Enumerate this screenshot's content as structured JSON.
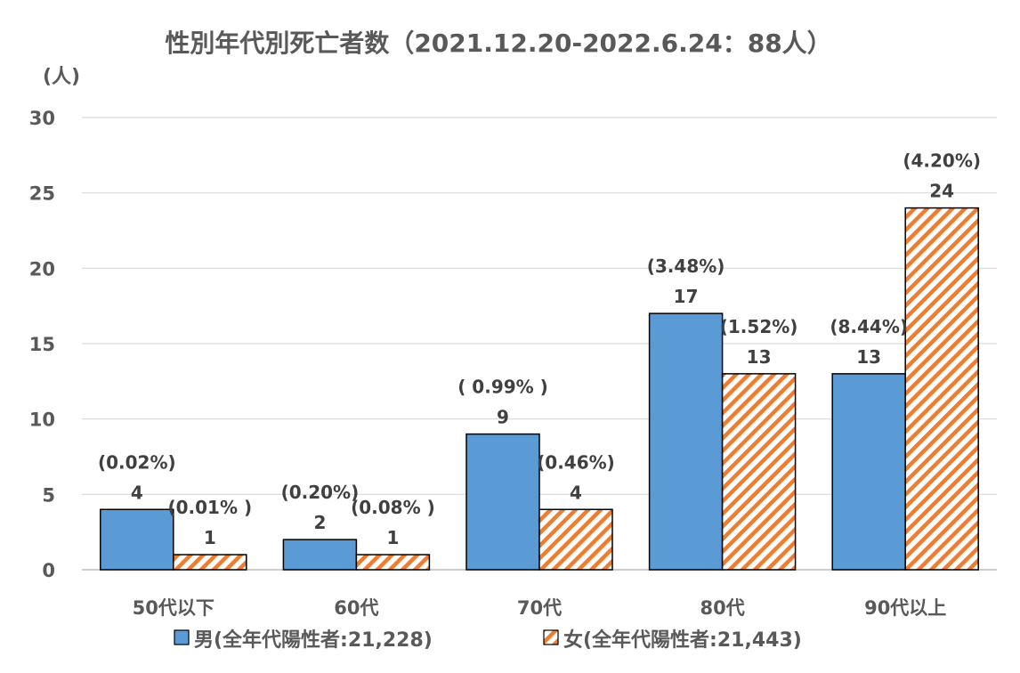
{
  "chart_data": {
    "type": "bar",
    "title": "性別年代別死亡者数（2021.12.20-2022.6.24：88人）",
    "ylabel": "(人)",
    "xlabel": "",
    "ylim": [
      0,
      30
    ],
    "yticks": [
      0,
      5,
      10,
      15,
      20,
      25,
      30
    ],
    "grid": true,
    "legend_position": "bottom",
    "categories": [
      "50代以下",
      "60代",
      "70代",
      "80代",
      "90代以上"
    ],
    "series": [
      {
        "name": "男(全年代陽性者:21,228)",
        "values": [
          4,
          2,
          9,
          17,
          13
        ],
        "percent_labels": [
          "(0.02%)",
          "(0.20%)",
          "( 0.99% )",
          "(3.48%)",
          "(8.44%)"
        ],
        "color": "#5b9bd5",
        "pattern": "solid"
      },
      {
        "name": "女(全年代陽性者:21,443)",
        "values": [
          1,
          1,
          4,
          13,
          24
        ],
        "percent_labels": [
          "(0.01% )",
          "(0.08% )",
          "(0.46%)",
          "(1.52%)",
          "(4.20%)"
        ],
        "color": "#ed7d31",
        "pattern": "diagonal-stripes"
      }
    ]
  }
}
